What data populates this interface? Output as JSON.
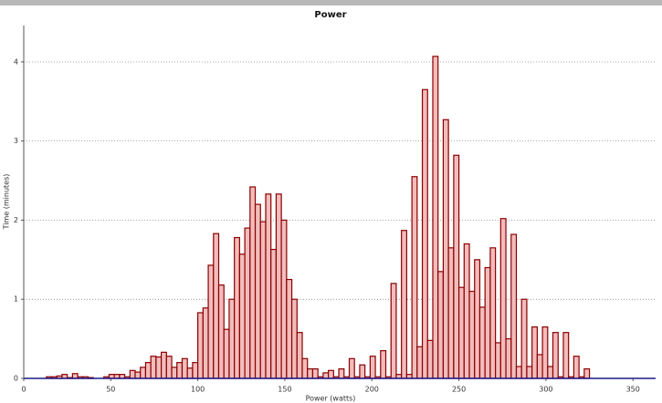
{
  "chart_data": {
    "type": "histogram",
    "title": "Power",
    "x_label": "Power (watts)",
    "y_label": "Time (minutes)",
    "bins": [
      13,
      16,
      19,
      22,
      25,
      28,
      31,
      34,
      37,
      40,
      43,
      46,
      49,
      52,
      55,
      58,
      61,
      64,
      67,
      70,
      73,
      76,
      79,
      82,
      85,
      88,
      91,
      94,
      97,
      100,
      103,
      106,
      109,
      112,
      115,
      118,
      121,
      124,
      127,
      130,
      133,
      136,
      139,
      142,
      145,
      148,
      151,
      154,
      157,
      160,
      163,
      166,
      169,
      172,
      175,
      178,
      181,
      184,
      187,
      190,
      193,
      196,
      199,
      202,
      205,
      208,
      211,
      214,
      217,
      220,
      223,
      226,
      229,
      232,
      235,
      238,
      241,
      244,
      247,
      250,
      253,
      256,
      259,
      262,
      265,
      268,
      271,
      274,
      277,
      280,
      283,
      286,
      289,
      292,
      295,
      298,
      301,
      304,
      307,
      310,
      313,
      316,
      319,
      322,
      325
    ],
    "values": [
      0.02,
      0.02,
      0.03,
      0.05,
      0.01,
      0.06,
      0.02,
      0.02,
      0.01,
      0,
      0,
      0.02,
      0.05,
      0.05,
      0.05,
      0.02,
      0.1,
      0.08,
      0.14,
      0.2,
      0.28,
      0.27,
      0.33,
      0.28,
      0.14,
      0.2,
      0.25,
      0.13,
      0.2,
      0.83,
      0.89,
      1.43,
      1.83,
      1.18,
      0.62,
      1.0,
      1.78,
      1.57,
      1.9,
      2.42,
      2.2,
      1.98,
      2.33,
      1.63,
      2.33,
      2.0,
      1.25,
      1.0,
      0.58,
      0.25,
      0.12,
      0.12,
      0.02,
      0.07,
      0.1,
      0.02,
      0.12,
      0.02,
      0.25,
      0.02,
      0.17,
      0.02,
      0.28,
      0.02,
      0.35,
      0.02,
      1.2,
      0.05,
      1.87,
      0.05,
      2.55,
      0.4,
      3.65,
      0.48,
      4.07,
      1.35,
      3.27,
      1.65,
      2.82,
      1.15,
      1.7,
      1.1,
      1.5,
      0.9,
      1.4,
      1.65,
      0.45,
      2.02,
      0.5,
      1.82,
      0.15,
      1.0,
      0.15,
      0.65,
      0.3,
      0.65,
      0.15,
      0.58,
      0.02,
      0.58,
      0.02,
      0.28,
      0.02,
      0.12
    ],
    "color": "#f2bcbc",
    "edge_color": "#8b0000",
    "xlim": [
      0,
      363
    ],
    "xticks": [
      0,
      50,
      100,
      150,
      200,
      250,
      300,
      350
    ],
    "ylim": [
      0,
      4.46
    ],
    "yticks": [
      0,
      1,
      2,
      3,
      4
    ],
    "grid": true
  }
}
